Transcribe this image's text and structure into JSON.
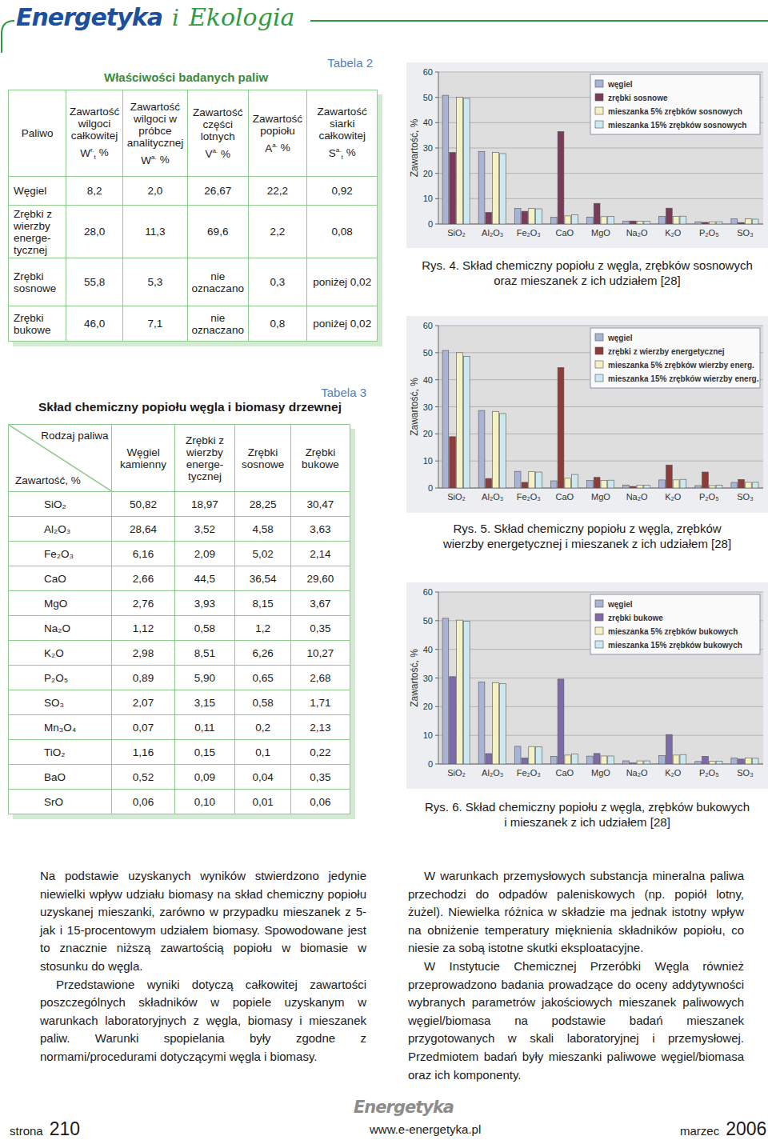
{
  "header": {
    "title_main": "Energetyka",
    "title_connector": "i",
    "title_secondary": "Ekologia"
  },
  "table2": {
    "label": "Tabela 2",
    "title": "Właściwości badanych paliw",
    "columns": [
      {
        "text": "Paliwo"
      },
      {
        "text": "Zawartość wilgoci całkowitej",
        "symbol": "W",
        "sup": "r.",
        "sub": "t",
        "unit": "%"
      },
      {
        "text": "Zawartość wilgoci w próbce analitycznej",
        "symbol": "W",
        "sup": "a.",
        "unit": "%"
      },
      {
        "text": "Zawartość części lotnych",
        "symbol": "V",
        "sup": "a.",
        "unit": "%"
      },
      {
        "text": "Zawartość popiołu",
        "symbol": "A",
        "sup": "a.",
        "unit": "%"
      },
      {
        "text": "Zawartość siarki całkowitej",
        "symbol": "S",
        "sup": "a.",
        "sub": "t",
        "unit": "%"
      }
    ],
    "rows": [
      [
        "Węgiel",
        "8,2",
        "2,0",
        "26,67",
        "22,2",
        "0,92"
      ],
      [
        "Zrębki z wierzby energe­tycznej",
        "28,0",
        "11,3",
        "69,6",
        "2,2",
        "0,08"
      ],
      [
        "Zrębki sosnowe",
        "55,8",
        "5,3",
        "nie oznaczano",
        "0,3",
        "poniżej 0,02"
      ],
      [
        "Zrębki bukowe",
        "46,0",
        "7,1",
        "nie oznaczano",
        "0,8",
        "poniżej 0,02"
      ]
    ]
  },
  "table3": {
    "label": "Tabela 3",
    "title": "Skład chemiczny popiołu węgla i biomasy drzewnej",
    "corner_top": "Rodzaj paliwa",
    "corner_bottom": "Zawartość, %",
    "columns": [
      "Węgiel kamienny",
      "Zrębki z wierzby energe­tycznej",
      "Zrębki sosnowe",
      "Zrębki bukowe"
    ],
    "rows": [
      [
        "SiO₂",
        "50,82",
        "18,97",
        "28,25",
        "30,47"
      ],
      [
        "Al₂O₃",
        "28,64",
        "3,52",
        "4,58",
        "3,63"
      ],
      [
        "Fe₂O₃",
        "6,16",
        "2,09",
        "5,02",
        "2,14"
      ],
      [
        "CaO",
        "2,66",
        "44,5",
        "36,54",
        "29,60"
      ],
      [
        "MgO",
        "2,76",
        "3,93",
        "8,15",
        "3,67"
      ],
      [
        "Na₂O",
        "1,12",
        "0,58",
        "1,2",
        "0,35"
      ],
      [
        "K₂O",
        "2,98",
        "8,51",
        "6,26",
        "10,27"
      ],
      [
        "P₂O₅",
        "0,89",
        "5,90",
        "0,65",
        "2,68"
      ],
      [
        "SO₃",
        "2,07",
        "3,15",
        "0,58",
        "1,71"
      ],
      [
        "Mn₃O₄",
        "0,07",
        "0,11",
        "0,2",
        "2,13"
      ],
      [
        "TiO₂",
        "1,16",
        "0,15",
        "0,1",
        "0,22"
      ],
      [
        "BaO",
        "0,52",
        "0,09",
        "0,04",
        "0,35"
      ],
      [
        "SrO",
        "0,06",
        "0,10",
        "0,01",
        "0,06"
      ]
    ]
  },
  "chart_data": [
    {
      "type": "bar",
      "y_label": "Zawartość, %",
      "categories": [
        "SiO₂",
        "Al₂O₃",
        "Fe₂O₃",
        "CaO",
        "MgO",
        "Na₂O",
        "K₂O",
        "P₂O₅",
        "SO₃"
      ],
      "series": [
        {
          "name": "węgiel",
          "color": "#a9b3d6",
          "values": [
            50.82,
            28.64,
            6.16,
            2.66,
            2.76,
            1.12,
            2.98,
            0.89,
            2.07
          ]
        },
        {
          "name": "zrębki sosnowe",
          "color": "#7a3b5a",
          "values": [
            28.25,
            4.58,
            5.02,
            36.54,
            8.15,
            1.2,
            6.26,
            0.65,
            0.58
          ]
        },
        {
          "name": "mieszanka 5% zrębków sosnowych",
          "color": "#f4f1c4",
          "values": [
            50.0,
            28.3,
            6.2,
            3.2,
            2.9,
            1.1,
            3.0,
            0.9,
            2.0
          ]
        },
        {
          "name": "mieszanka 15% zrębków sosnowych",
          "color": "#cde9f0",
          "values": [
            49.6,
            27.8,
            6.0,
            3.6,
            3.0,
            1.1,
            3.1,
            0.9,
            1.9
          ]
        }
      ],
      "ylim": [
        0,
        60
      ],
      "yticks": [
        0,
        10,
        20,
        30,
        40,
        50,
        60
      ],
      "grid": true,
      "legend": "top-right"
    },
    {
      "type": "bar",
      "y_label": "Zawartość, %",
      "categories": [
        "SiO₂",
        "Al₂O₃",
        "Fe₂O₃",
        "CaO",
        "MgO",
        "Na₂O",
        "K₂O",
        "P₂O₅",
        "SO₃"
      ],
      "series": [
        {
          "name": "węgiel",
          "color": "#a9b3d6",
          "values": [
            50.82,
            28.64,
            6.16,
            2.66,
            2.76,
            1.12,
            2.98,
            0.89,
            2.07
          ]
        },
        {
          "name": "zrębki z wierzby energetycznej",
          "color": "#8e3b3b",
          "values": [
            18.97,
            3.52,
            2.09,
            44.5,
            3.93,
            0.58,
            8.51,
            5.9,
            3.15
          ]
        },
        {
          "name": "mieszanka 5% zrębków wierzby energ.",
          "color": "#f4f1c4",
          "values": [
            50.0,
            28.3,
            6.1,
            3.6,
            2.8,
            1.1,
            3.0,
            0.9,
            2.1
          ]
        },
        {
          "name": "mieszanka 15% zrębków wierzby energ.",
          "color": "#cde9f0",
          "values": [
            48.6,
            27.5,
            5.9,
            5.0,
            2.9,
            1.1,
            3.2,
            1.1,
            2.1
          ]
        }
      ],
      "ylim": [
        0,
        60
      ],
      "yticks": [
        0,
        10,
        20,
        30,
        40,
        50,
        60
      ],
      "grid": true,
      "legend": "top-right"
    },
    {
      "type": "bar",
      "y_label": "Zawartość, %",
      "categories": [
        "SiO₂",
        "Al₂O₃",
        "Fe₂O₃",
        "CaO",
        "MgO",
        "Na₂O",
        "K₂O",
        "P₂O₅",
        "SO₃"
      ],
      "series": [
        {
          "name": "węgiel",
          "color": "#a9b3d6",
          "values": [
            50.82,
            28.64,
            6.16,
            2.66,
            2.76,
            1.12,
            2.98,
            0.89,
            2.07
          ]
        },
        {
          "name": "zrębki bukowe",
          "color": "#7e6aa8",
          "values": [
            30.47,
            3.63,
            2.14,
            29.6,
            3.67,
            0.35,
            10.27,
            2.68,
            1.71
          ]
        },
        {
          "name": "mieszanka 5% zrębków bukowych",
          "color": "#f4f1c4",
          "values": [
            50.2,
            28.4,
            6.1,
            3.1,
            2.8,
            1.1,
            3.1,
            0.9,
            2.1
          ]
        },
        {
          "name": "mieszanka 15% zrębków bukowych",
          "color": "#cde9f0",
          "values": [
            49.8,
            28.0,
            6.0,
            3.5,
            2.8,
            1.1,
            3.3,
            1.0,
            2.0
          ]
        }
      ],
      "ylim": [
        0,
        60
      ],
      "yticks": [
        0,
        10,
        20,
        30,
        40,
        50,
        60
      ],
      "grid": true,
      "legend": "top-right"
    }
  ],
  "captions": [
    [
      "Rys. 4. Skład chemiczny popiołu z węgla, zrębków sosnowych",
      "oraz mieszanek z ich udziałem [28]"
    ],
    [
      "Rys. 5. Skład chemiczny popiołu z węgla, zrębków",
      "wierzby energetycznej i mieszanek z ich udziałem [28]"
    ],
    [
      "Rys. 6. Skład chemiczny popiołu z węgla, zrębków bukowych",
      "i mieszanek z ich udziałem [28]"
    ]
  ],
  "body": {
    "left": [
      "Na podstawie uzyskanych wyników stwierdzono jedynie niewielki wpływ udziału biomasy na skład chemiczny popiołu uzyskanej mieszanki, zarówno w przypadku mieszanek z 5- jak i 15-procentowym udziałem biomasy. Spowodowane jest to znacznie niższą zawartością popiołu w biomasie w stosunku do węgla.",
      "Przedstawione wyniki dotyczą całkowitej zawartości poszczególnych składników w popiele uzyskanym w warunkach laboratoryjnych z węgla, biomasy i mieszanek paliw. Warunki spopielania były zgodne z normami/procedurami dotyczącymi węgla i biomasy."
    ],
    "right": [
      "W warunkach przemysłowych substancja mineralna paliwa przechodzi do odpadów paleniskowych (np. popiół lotny, żużel). Niewielka różnica w składzie ma jednak istotny wpływ na obniżenie temperatury mięknienia składników popiołu, co niesie za sobą istotne skutki eksploatacyjne.",
      "W Instytucie Chemicznej Przeróbki Węgla również przeprowadzono badania prowadzące do oceny addytywności wybranych parametrów jakościowych mieszanek paliwowych węgiel/biomasa na podstawie badań mieszanek przygotowanych w skali laboratoryjnej i przemysłowej. Przedmiotem badań były mieszanki paliwowe węgiel/biomasa oraz ich komponenty."
    ]
  },
  "footer": {
    "page_label": "strona",
    "page_number": "210",
    "logo": "Energetyka",
    "url": "www.e-energetyka.pl",
    "month": "marzec",
    "year": "2006"
  }
}
